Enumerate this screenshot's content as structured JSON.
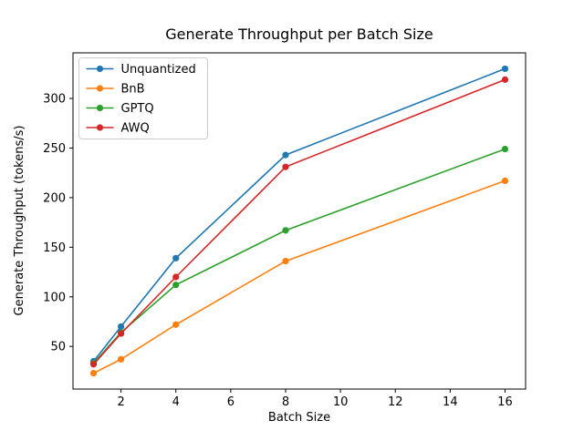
{
  "chart_data": {
    "type": "line",
    "title": "Generate Throughput per Batch Size",
    "xlabel": "Batch Size",
    "ylabel": "Generate Throughput (tokens/s)",
    "x": [
      1,
      2,
      4,
      8,
      16
    ],
    "series": [
      {
        "name": "Unquantized",
        "color": "#1f77b4",
        "values": [
          35,
          70,
          139,
          243,
          330
        ]
      },
      {
        "name": "BnB",
        "color": "#ff7f0e",
        "values": [
          23,
          37,
          72,
          136,
          217
        ]
      },
      {
        "name": "GPTQ",
        "color": "#2ca02c",
        "values": [
          33,
          64,
          112,
          167,
          249
        ]
      },
      {
        "name": "AWQ",
        "color": "#d62728",
        "values": [
          32,
          63,
          120,
          231,
          319
        ]
      }
    ],
    "xlim": [
      0.25,
      16.75
    ],
    "ylim": [
      7,
      346
    ],
    "xticks": [
      2,
      4,
      6,
      8,
      10,
      12,
      14,
      16
    ],
    "yticks": [
      50,
      100,
      150,
      200,
      250,
      300
    ],
    "grid": false,
    "legend_position": "upper left"
  }
}
